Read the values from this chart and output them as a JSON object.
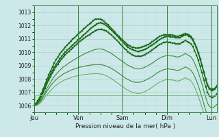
{
  "title": "",
  "xlabel": "Pression niveau de la mer( hPa )",
  "bg_color": "#cce8e8",
  "grid_color_major": "#b0cece",
  "grid_color_minor": "#c4dede",
  "line_dark": "#1a6b1a",
  "line_light": "#5a9e5a",
  "ylim": [
    1005.5,
    1013.5
  ],
  "yticks": [
    1006,
    1007,
    1008,
    1009,
    1010,
    1011,
    1012,
    1013
  ],
  "day_labels": [
    "Jeu",
    "Ven",
    "Sam",
    "Dim",
    "Lun"
  ],
  "day_positions": [
    0,
    24,
    48,
    72,
    96
  ],
  "total_hours": 120,
  "series": [
    {
      "color": "#1a6b1a",
      "lw": 1.0,
      "marker": "s",
      "ms": 1.8,
      "data": [
        1006.0,
        1006.15,
        1006.35,
        1006.6,
        1006.9,
        1007.25,
        1007.6,
        1007.95,
        1008.3,
        1008.6,
        1008.9,
        1009.2,
        1009.45,
        1009.65,
        1009.85,
        1010.05,
        1010.2,
        1010.38,
        1010.55,
        1010.7,
        1010.85,
        1010.98,
        1011.1,
        1011.22,
        1011.35,
        1011.5,
        1011.62,
        1011.75,
        1011.88,
        1012.0,
        1012.1,
        1012.2,
        1012.35,
        1012.45,
        1012.5,
        1012.5,
        1012.48,
        1012.42,
        1012.3,
        1012.18,
        1012.05,
        1011.92,
        1011.78,
        1011.62,
        1011.48,
        1011.32,
        1011.18,
        1011.05,
        1010.9,
        1010.78,
        1010.65,
        1010.55,
        1010.45,
        1010.38,
        1010.35,
        1010.32,
        1010.3,
        1010.32,
        1010.35,
        1010.4,
        1010.45,
        1010.52,
        1010.58,
        1010.68,
        1010.78,
        1010.88,
        1010.98,
        1011.08,
        1011.18,
        1011.22,
        1011.28,
        1011.3,
        1011.32,
        1011.3,
        1011.28,
        1011.28,
        1011.25,
        1011.2,
        1011.2,
        1011.22,
        1011.28,
        1011.35,
        1011.4,
        1011.35,
        1011.28,
        1011.18,
        1010.98,
        1010.7,
        1010.38,
        1009.98,
        1009.52,
        1009.05,
        1008.52,
        1008.0,
        1007.58,
        1007.32,
        1007.22,
        1007.22,
        1007.32,
        1007.48
      ]
    },
    {
      "color": "#1a6b1a",
      "lw": 1.0,
      "marker": "s",
      "ms": 1.8,
      "data": [
        1006.0,
        1006.12,
        1006.28,
        1006.5,
        1006.78,
        1007.08,
        1007.42,
        1007.75,
        1008.05,
        1008.35,
        1008.62,
        1008.88,
        1009.1,
        1009.3,
        1009.5,
        1009.68,
        1009.85,
        1010.0,
        1010.15,
        1010.28,
        1010.42,
        1010.55,
        1010.68,
        1010.8,
        1010.92,
        1011.05,
        1011.18,
        1011.3,
        1011.42,
        1011.55,
        1011.68,
        1011.8,
        1011.92,
        1012.02,
        1012.1,
        1012.18,
        1012.2,
        1012.18,
        1012.1,
        1012.0,
        1011.9,
        1011.78,
        1011.65,
        1011.52,
        1011.38,
        1011.22,
        1011.08,
        1010.92,
        1010.78,
        1010.62,
        1010.5,
        1010.38,
        1010.28,
        1010.2,
        1010.15,
        1010.1,
        1010.08,
        1010.08,
        1010.1,
        1010.15,
        1010.2,
        1010.28,
        1010.35,
        1010.45,
        1010.55,
        1010.65,
        1010.75,
        1010.85,
        1010.95,
        1011.02,
        1011.1,
        1011.15,
        1011.18,
        1011.18,
        1011.15,
        1011.15,
        1011.12,
        1011.08,
        1011.08,
        1011.1,
        1011.18,
        1011.25,
        1011.32,
        1011.28,
        1011.2,
        1011.1,
        1010.9,
        1010.62,
        1010.3,
        1009.9,
        1009.45,
        1008.98,
        1008.45,
        1007.92,
        1007.5,
        1007.25,
        1007.15,
        1007.15,
        1007.25,
        1007.42
      ]
    },
    {
      "color": "#1a6b1a",
      "lw": 0.9,
      "marker": "s",
      "ms": 1.6,
      "data": [
        1006.0,
        1006.1,
        1006.22,
        1006.42,
        1006.68,
        1006.98,
        1007.3,
        1007.62,
        1007.9,
        1008.18,
        1008.45,
        1008.7,
        1008.92,
        1009.1,
        1009.3,
        1009.48,
        1009.65,
        1009.8,
        1009.95,
        1010.08,
        1010.2,
        1010.32,
        1010.45,
        1010.58,
        1010.7,
        1010.82,
        1010.92,
        1011.02,
        1011.12,
        1011.22,
        1011.32,
        1011.42,
        1011.52,
        1011.6,
        1011.65,
        1011.72,
        1011.72,
        1011.7,
        1011.65,
        1011.58,
        1011.5,
        1011.4,
        1011.28,
        1011.15,
        1011.02,
        1010.88,
        1010.72,
        1010.58,
        1010.42,
        1010.28,
        1010.15,
        1010.02,
        1009.92,
        1009.82,
        1009.75,
        1009.7,
        1009.68,
        1009.68,
        1009.7,
        1009.75,
        1009.82,
        1009.9,
        1009.98,
        1010.08,
        1010.18,
        1010.28,
        1010.38,
        1010.48,
        1010.58,
        1010.65,
        1010.72,
        1010.75,
        1010.78,
        1010.75,
        1010.72,
        1010.7,
        1010.68,
        1010.62,
        1010.62,
        1010.65,
        1010.72,
        1010.8,
        1010.88,
        1010.8,
        1010.72,
        1010.62,
        1010.42,
        1010.12,
        1009.78,
        1009.38,
        1008.92,
        1008.45,
        1007.92,
        1007.42,
        1006.98,
        1006.72,
        1006.62,
        1006.62,
        1006.72,
        1006.88
      ]
    },
    {
      "color": "#3a8a3a",
      "lw": 0.8,
      "marker": null,
      "ms": 0,
      "data": [
        1006.0,
        1006.05,
        1006.15,
        1006.3,
        1006.5,
        1006.75,
        1007.0,
        1007.28,
        1007.52,
        1007.75,
        1007.98,
        1008.18,
        1008.35,
        1008.5,
        1008.65,
        1008.78,
        1008.9,
        1009.0,
        1009.1,
        1009.2,
        1009.28,
        1009.38,
        1009.45,
        1009.55,
        1009.62,
        1009.7,
        1009.78,
        1009.85,
        1009.92,
        1009.98,
        1010.05,
        1010.1,
        1010.15,
        1010.2,
        1010.22,
        1010.25,
        1010.25,
        1010.22,
        1010.18,
        1010.12,
        1010.05,
        1009.98,
        1009.9,
        1009.8,
        1009.7,
        1009.6,
        1009.5,
        1009.4,
        1009.3,
        1009.2,
        1009.1,
        1009.02,
        1008.95,
        1008.88,
        1008.82,
        1008.78,
        1008.75,
        1008.75,
        1008.78,
        1008.82,
        1008.88,
        1008.95,
        1009.02,
        1009.1,
        1009.18,
        1009.28,
        1009.38,
        1009.48,
        1009.55,
        1009.62,
        1009.68,
        1009.72,
        1009.75,
        1009.75,
        1009.72,
        1009.72,
        1009.7,
        1009.65,
        1009.65,
        1009.68,
        1009.75,
        1009.82,
        1009.9,
        1009.82,
        1009.75,
        1009.65,
        1009.45,
        1009.18,
        1008.85,
        1008.48,
        1008.05,
        1007.62,
        1007.1,
        1006.62,
        1006.18,
        1005.95,
        1005.85,
        1005.85,
        1005.95,
        1006.1
      ]
    },
    {
      "color": "#3a8a3a",
      "lw": 0.8,
      "marker": null,
      "ms": 0,
      "data": [
        1006.0,
        1006.02,
        1006.1,
        1006.22,
        1006.4,
        1006.62,
        1006.85,
        1007.08,
        1007.28,
        1007.48,
        1007.65,
        1007.82,
        1007.95,
        1008.08,
        1008.18,
        1008.28,
        1008.38,
        1008.45,
        1008.52,
        1008.58,
        1008.65,
        1008.7,
        1008.75,
        1008.8,
        1008.85,
        1008.88,
        1008.92,
        1008.95,
        1008.98,
        1009.0,
        1009.02,
        1009.05,
        1009.05,
        1009.08,
        1009.08,
        1009.08,
        1009.08,
        1009.05,
        1009.02,
        1008.98,
        1008.92,
        1008.85,
        1008.78,
        1008.7,
        1008.62,
        1008.52,
        1008.42,
        1008.32,
        1008.22,
        1008.12,
        1008.02,
        1007.95,
        1007.88,
        1007.82,
        1007.78,
        1007.75,
        1007.75,
        1007.75,
        1007.78,
        1007.82,
        1007.88,
        1007.95,
        1008.02,
        1008.1,
        1008.18,
        1008.28,
        1008.38,
        1008.48,
        1008.55,
        1008.62,
        1008.68,
        1008.72,
        1008.75,
        1008.75,
        1008.72,
        1008.72,
        1008.7,
        1008.65,
        1008.65,
        1008.68,
        1008.75,
        1008.82,
        1008.9,
        1008.82,
        1008.75,
        1008.65,
        1008.45,
        1008.18,
        1007.85,
        1007.48,
        1007.05,
        1006.62,
        1006.12,
        1005.65,
        1005.22,
        1004.98,
        1004.88,
        1004.88,
        1004.98,
        1005.12
      ]
    },
    {
      "color": "#5aaa5a",
      "lw": 0.7,
      "marker": null,
      "ms": 0,
      "data": [
        1006.0,
        1006.0,
        1006.05,
        1006.15,
        1006.28,
        1006.45,
        1006.62,
        1006.8,
        1006.98,
        1007.12,
        1007.28,
        1007.42,
        1007.52,
        1007.62,
        1007.72,
        1007.8,
        1007.88,
        1007.95,
        1008.0,
        1008.05,
        1008.1,
        1008.15,
        1008.18,
        1008.22,
        1008.25,
        1008.28,
        1008.3,
        1008.32,
        1008.35,
        1008.35,
        1008.38,
        1008.38,
        1008.38,
        1008.4,
        1008.4,
        1008.38,
        1008.38,
        1008.35,
        1008.3,
        1008.25,
        1008.18,
        1008.1,
        1008.02,
        1007.92,
        1007.82,
        1007.72,
        1007.62,
        1007.52,
        1007.42,
        1007.32,
        1007.22,
        1007.15,
        1007.08,
        1007.02,
        1006.98,
        1006.95,
        1006.92,
        1006.92,
        1006.95,
        1006.98,
        1007.05,
        1007.12,
        1007.2,
        1007.28,
        1007.38,
        1007.48,
        1007.58,
        1007.68,
        1007.75,
        1007.82,
        1007.88,
        1007.92,
        1007.95,
        1007.95,
        1007.92,
        1007.92,
        1007.9,
        1007.85,
        1007.85,
        1007.88,
        1007.95,
        1008.02,
        1008.1,
        1008.02,
        1007.95,
        1007.85,
        1007.65,
        1007.38,
        1007.05,
        1006.68,
        1006.28,
        1005.88,
        1005.42,
        1004.98,
        1004.58,
        1004.38,
        1004.28,
        1004.28,
        1004.38,
        1004.52
      ]
    },
    {
      "color": "#7abb7a",
      "lw": 0.6,
      "marker": null,
      "ms": 0,
      "data": [
        1006.0,
        1006.75,
        1006.75,
        1006.75,
        1006.75,
        1006.75,
        1006.75,
        1006.75,
        1006.75,
        1006.75,
        1006.75,
        1006.75,
        1006.75,
        1006.75,
        1006.75,
        1006.75,
        1006.75,
        1006.75,
        1006.75,
        1006.75,
        1006.75,
        1006.75,
        1006.75,
        1006.75,
        1006.75,
        1006.75,
        1006.75,
        1006.75,
        1006.75,
        1006.75,
        1006.75,
        1006.75,
        1006.75,
        1006.75,
        1006.75,
        1006.75,
        1006.75,
        1006.75,
        1006.75,
        1006.75,
        1006.75,
        1006.75,
        1006.75,
        1006.75,
        1006.75,
        1006.75,
        1006.75,
        1006.75,
        1006.75,
        1006.75,
        1006.75,
        1006.75,
        1006.75,
        1006.75,
        1006.75,
        1006.75,
        1006.75,
        1006.75,
        1006.75,
        1006.75,
        1006.75,
        1006.75,
        1006.75,
        1006.75,
        1006.75,
        1006.75,
        1006.75,
        1006.75,
        1006.75,
        1006.75,
        1006.75,
        1006.75,
        1006.75,
        1006.75,
        1006.75,
        1006.75,
        1006.75,
        1006.75,
        1006.75,
        1006.75,
        1006.75,
        1006.75,
        1006.75,
        1006.75,
        1006.75,
        1006.75,
        1006.75,
        1006.75,
        1006.75,
        1006.75,
        1006.75,
        1006.75,
        1006.75,
        1006.75,
        1006.75,
        1006.75,
        1006.75,
        1006.75,
        1006.75,
        1006.75
      ]
    }
  ]
}
